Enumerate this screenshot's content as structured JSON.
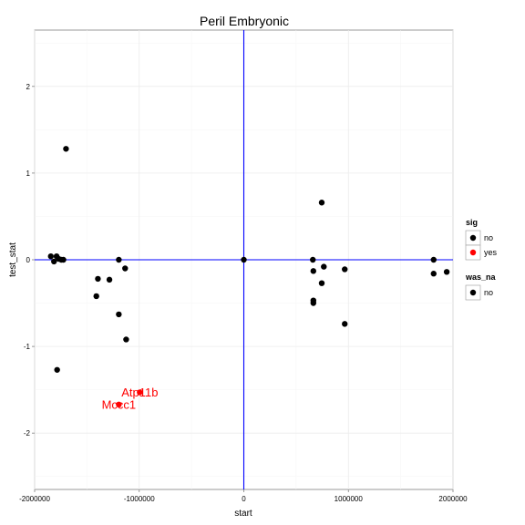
{
  "chart_data": {
    "type": "scatter",
    "title": "Peril Embryonic",
    "xlabel": "start",
    "ylabel": "test_stat",
    "xlim": [
      -2000000,
      2000000
    ],
    "ylim": [
      -2.65,
      2.65
    ],
    "x_ticks": [
      -2000000,
      -1000000,
      0,
      1000000,
      2000000
    ],
    "x_tick_labels": [
      "-2000000",
      "-1000000",
      "0",
      "1000000",
      "2000000"
    ],
    "y_ticks": [
      -2,
      -1,
      0,
      1,
      2
    ],
    "y_tick_labels": [
      "-2",
      "-1",
      "0",
      "1",
      "2"
    ],
    "grid": true,
    "reference_lines": {
      "x": 0,
      "y": 0,
      "color": "#0000ff"
    },
    "legend_placement": "right",
    "legends": [
      {
        "title": "sig",
        "entries": [
          {
            "label": "no",
            "color": "#000000",
            "shape": "circle"
          },
          {
            "label": "yes",
            "color": "#ff0000",
            "shape": "circle"
          }
        ]
      },
      {
        "title": "was_na",
        "entries": [
          {
            "label": "no",
            "color": "#000000",
            "shape": "circle"
          }
        ]
      }
    ],
    "colors": {
      "no": "#000000",
      "yes": "#ff0000"
    },
    "points": [
      {
        "x": -1845000,
        "y": 0.04,
        "sig": "no"
      },
      {
        "x": -1815000,
        "y": -0.02,
        "sig": "no"
      },
      {
        "x": -1790000,
        "y": 0.04,
        "sig": "no"
      },
      {
        "x": -1770000,
        "y": 0.01,
        "sig": "no"
      },
      {
        "x": -1745000,
        "y": 0.0,
        "sig": "no"
      },
      {
        "x": -1725000,
        "y": 0.0,
        "sig": "no"
      },
      {
        "x": -1700000,
        "y": 1.28,
        "sig": "no"
      },
      {
        "x": -1785000,
        "y": -1.27,
        "sig": "no"
      },
      {
        "x": -1395000,
        "y": -0.22,
        "sig": "no"
      },
      {
        "x": -1410000,
        "y": -0.42,
        "sig": "no"
      },
      {
        "x": -1285000,
        "y": -0.23,
        "sig": "no"
      },
      {
        "x": -1195000,
        "y": 0.0,
        "sig": "no"
      },
      {
        "x": -1135000,
        "y": -0.1,
        "sig": "no"
      },
      {
        "x": -1195000,
        "y": -0.63,
        "sig": "no"
      },
      {
        "x": -1125000,
        "y": -0.92,
        "sig": "no"
      },
      {
        "x": 0,
        "y": 0.0,
        "sig": "no"
      },
      {
        "x": 660000,
        "y": 0.0,
        "sig": "no"
      },
      {
        "x": 665000,
        "y": -0.13,
        "sig": "no"
      },
      {
        "x": 665000,
        "y": -0.47,
        "sig": "no"
      },
      {
        "x": 665000,
        "y": -0.5,
        "sig": "no"
      },
      {
        "x": 745000,
        "y": 0.66,
        "sig": "no"
      },
      {
        "x": 765000,
        "y": -0.08,
        "sig": "no"
      },
      {
        "x": 745000,
        "y": -0.27,
        "sig": "no"
      },
      {
        "x": 965000,
        "y": -0.11,
        "sig": "no"
      },
      {
        "x": 965000,
        "y": -0.74,
        "sig": "no"
      },
      {
        "x": 1815000,
        "y": 0.0,
        "sig": "no"
      },
      {
        "x": 1815000,
        "y": -0.16,
        "sig": "no"
      },
      {
        "x": 1940000,
        "y": -0.14,
        "sig": "no"
      },
      {
        "x": -995000,
        "y": -1.53,
        "sig": "yes",
        "label": "Atp11b"
      },
      {
        "x": -1195000,
        "y": -1.67,
        "sig": "yes",
        "label": "Mccc1"
      }
    ]
  }
}
